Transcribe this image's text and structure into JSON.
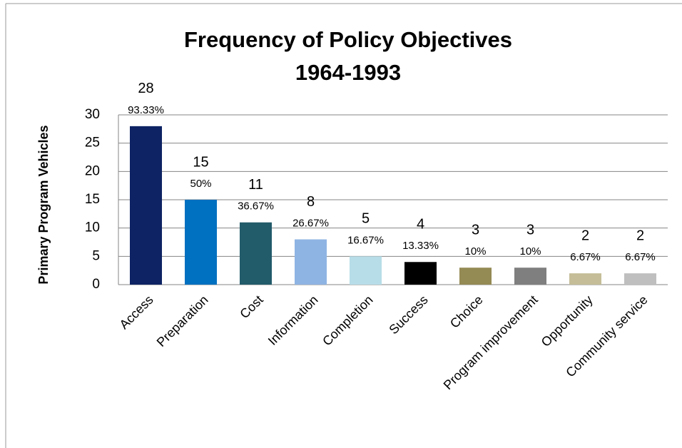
{
  "chart_data": {
    "type": "bar",
    "title": [
      "Frequency of Policy Objectives",
      "1964-1993"
    ],
    "y_label": "Primary Program Vehicles",
    "categories": [
      "Access",
      "Preparation",
      "Cost",
      "Information",
      "Completion",
      "Success",
      "Choice",
      "Program improvement",
      "Opportunity",
      "Community service"
    ],
    "values": [
      28,
      15,
      11,
      8,
      5,
      4,
      3,
      3,
      2,
      2
    ],
    "shares": [
      93.33,
      50,
      36.67,
      26.67,
      16.67,
      13.33,
      10,
      10,
      6.67,
      6.67
    ],
    "share_labels": [
      "93.33%",
      "50%",
      "36.67%",
      "26.67%",
      "16.67%",
      "13.33%",
      "10%",
      "10%",
      "6.67%",
      "6.67%"
    ],
    "colors": [
      "#0d2363",
      "#0070c0",
      "#225b6a",
      "#8eb4e3",
      "#b7dde8",
      "#000000",
      "#948a54",
      "#7f7f7f",
      "#c4bd97",
      "#bfbfbf"
    ],
    "ylim": [
      0,
      30
    ],
    "yticks": [
      0,
      5,
      10,
      15,
      20,
      25,
      30
    ],
    "grid": true
  }
}
